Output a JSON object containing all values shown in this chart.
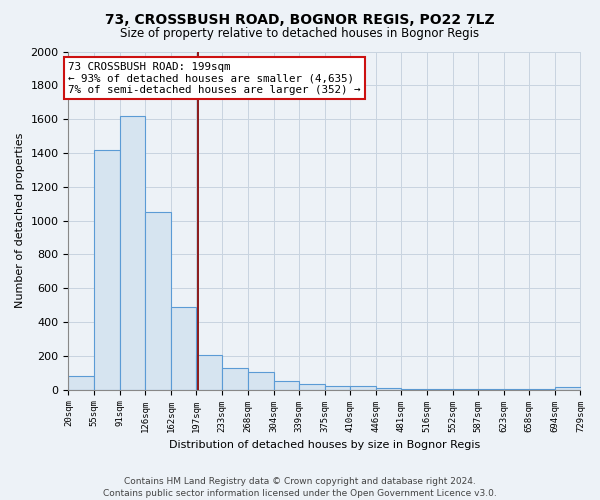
{
  "title": "73, CROSSBUSH ROAD, BOGNOR REGIS, PO22 7LZ",
  "subtitle": "Size of property relative to detached houses in Bognor Regis",
  "xlabel": "Distribution of detached houses by size in Bognor Regis",
  "ylabel": "Number of detached properties",
  "footer_line1": "Contains HM Land Registry data © Crown copyright and database right 2024.",
  "footer_line2": "Contains public sector information licensed under the Open Government Licence v3.0.",
  "annotation_line1": "73 CROSSBUSH ROAD: 199sqm",
  "annotation_line2": "← 93% of detached houses are smaller (4,635)",
  "annotation_line3": "7% of semi-detached houses are larger (352) →",
  "property_size": 199,
  "bin_edges": [
    20,
    55,
    91,
    126,
    162,
    197,
    233,
    268,
    304,
    339,
    375,
    410,
    446,
    481,
    516,
    552,
    587,
    623,
    658,
    694,
    729
  ],
  "bar_heights": [
    80,
    1420,
    1620,
    1050,
    490,
    205,
    130,
    105,
    50,
    35,
    20,
    20,
    10,
    5,
    5,
    3,
    3,
    2,
    2,
    15
  ],
  "bar_color": "#d6e4f0",
  "bar_edge_color": "#5b9bd5",
  "vline_color": "#8b1a1a",
  "vline_x": 199,
  "ylim": [
    0,
    2000
  ],
  "yticks": [
    0,
    200,
    400,
    600,
    800,
    1000,
    1200,
    1400,
    1600,
    1800,
    2000
  ],
  "grid_color": "#c8d4e0",
  "bg_color": "#edf2f7",
  "plot_bg_color": "#edf2f7",
  "annotation_box_facecolor": "#ffffff",
  "annotation_box_edgecolor": "#cc1111",
  "annotation_fontsize": 7.8
}
